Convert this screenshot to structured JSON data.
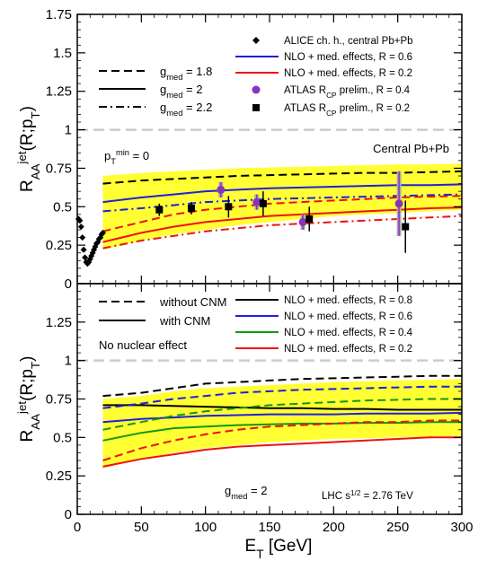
{
  "chart_data": [
    {
      "type": "line",
      "panel": "top",
      "ylabel": "R_AA^jet(R;p_T)",
      "ylim": [
        0,
        1.75
      ],
      "xlim": [
        0,
        300
      ],
      "yticks": [
        "0",
        "0.25",
        "0.5",
        "0.75",
        "1",
        "1.25",
        "1.5",
        "1.75"
      ],
      "xticks": [
        "0",
        "50",
        "100",
        "150",
        "200",
        "250",
        "300"
      ],
      "reference_line": 1.0,
      "band": {
        "color": "#ffff33",
        "x": [
          20,
          50,
          75,
          100,
          125,
          150,
          175,
          200,
          225,
          250,
          275,
          300
        ],
        "upper": [
          0.7,
          0.72,
          0.73,
          0.74,
          0.75,
          0.755,
          0.76,
          0.765,
          0.77,
          0.775,
          0.775,
          0.78
        ],
        "lower": [
          0.22,
          0.28,
          0.32,
          0.35,
          0.38,
          0.4,
          0.42,
          0.44,
          0.45,
          0.46,
          0.47,
          0.48
        ]
      },
      "series": [
        {
          "name": "g_med = 1.8, R = 0.6",
          "color": "#000000",
          "dash": "dashed",
          "x": [
            20,
            50,
            75,
            100,
            125,
            150,
            175,
            200,
            225,
            250,
            275,
            300
          ],
          "y": [
            0.65,
            0.67,
            0.68,
            0.69,
            0.7,
            0.705,
            0.71,
            0.715,
            0.72,
            0.72,
            0.725,
            0.73
          ]
        },
        {
          "name": "g_med = 2, R = 0.6",
          "color": "#1f1fdd",
          "dash": "solid",
          "x": [
            20,
            50,
            75,
            100,
            125,
            150,
            175,
            200,
            225,
            250,
            275,
            300
          ],
          "y": [
            0.53,
            0.56,
            0.58,
            0.6,
            0.61,
            0.62,
            0.625,
            0.63,
            0.635,
            0.64,
            0.64,
            0.645
          ]
        },
        {
          "name": "g_med = 2.2, R = 0.6",
          "color": "#1f1fdd",
          "dash": "dashdot",
          "x": [
            20,
            50,
            75,
            100,
            125,
            150,
            175,
            200,
            225,
            250,
            275,
            300
          ],
          "y": [
            0.47,
            0.49,
            0.51,
            0.53,
            0.54,
            0.55,
            0.555,
            0.56,
            0.565,
            0.57,
            0.575,
            0.58
          ]
        },
        {
          "name": "g_med = 1.8, R = 0.2",
          "color": "#ee1111",
          "dash": "dashed",
          "x": [
            20,
            50,
            75,
            100,
            125,
            150,
            175,
            200,
            225,
            250,
            275,
            300
          ],
          "y": [
            0.34,
            0.4,
            0.45,
            0.48,
            0.5,
            0.52,
            0.53,
            0.54,
            0.55,
            0.56,
            0.565,
            0.57
          ]
        },
        {
          "name": "g_med = 2, R = 0.2",
          "color": "#ee1111",
          "dash": "solid",
          "x": [
            20,
            50,
            75,
            100,
            125,
            150,
            175,
            200,
            225,
            250,
            275,
            300
          ],
          "y": [
            0.27,
            0.33,
            0.37,
            0.4,
            0.42,
            0.44,
            0.45,
            0.46,
            0.47,
            0.48,
            0.49,
            0.495
          ]
        },
        {
          "name": "g_med = 2.2, R = 0.2",
          "color": "#ee1111",
          "dash": "dashdot",
          "x": [
            20,
            50,
            75,
            100,
            125,
            150,
            175,
            200,
            225,
            250,
            275,
            300
          ],
          "y": [
            0.23,
            0.28,
            0.31,
            0.34,
            0.36,
            0.38,
            0.39,
            0.4,
            0.41,
            0.42,
            0.43,
            0.44
          ]
        }
      ],
      "alice": {
        "x": [
          1,
          2,
          3,
          4,
          5,
          6,
          7,
          8,
          9,
          10,
          11,
          12,
          13,
          14,
          15,
          16,
          17,
          18,
          19,
          20
        ],
        "y": [
          0.42,
          0.41,
          0.37,
          0.3,
          0.22,
          0.17,
          0.14,
          0.13,
          0.14,
          0.16,
          0.18,
          0.2,
          0.22,
          0.24,
          0.26,
          0.27,
          0.29,
          0.3,
          0.32,
          0.33
        ]
      },
      "atlas_r04": {
        "color": "#8833bb",
        "x": [
          112,
          140,
          176,
          251
        ],
        "y": [
          0.61,
          0.53,
          0.4,
          0.52
        ],
        "err": [
          0.05,
          0.05,
          0.05,
          0.21
        ]
      },
      "atlas_r02": {
        "x": [
          64,
          89,
          118,
          145,
          181,
          256
        ],
        "y": [
          0.48,
          0.49,
          0.5,
          0.52,
          0.42,
          0.37
        ],
        "err": [
          0.04,
          0.04,
          0.07,
          0.08,
          0.08,
          0.17
        ]
      },
      "legend_left": [
        {
          "text": "g",
          "sub": "med",
          "value": " = 1.8",
          "dash": "dashed"
        },
        {
          "text": "g",
          "sub": "med",
          "value": " = 2",
          "dash": "solid"
        },
        {
          "text": "g",
          "sub": "med",
          "value": " = 2.2",
          "dash": "dashdot"
        }
      ],
      "legend_right": [
        {
          "text": "ALICE ch. h., central Pb+Pb",
          "marker": "diamond"
        },
        {
          "text": "NLO + med. effects, R = 0.6",
          "color": "#1f1fdd"
        },
        {
          "text": "NLO + med. effects, R = 0.2",
          "color": "#ee1111"
        },
        {
          "text": "ATLAS R",
          "sub": "CP",
          "rest": " prelim., R = 0.4",
          "marker": "purple-circle"
        },
        {
          "text": "ATLAS R",
          "sub": "CP",
          "rest": " prelim., R = 0.2",
          "marker": "square"
        }
      ],
      "annotation_pt": {
        "text": "p",
        "sub": "T",
        "sup": "min",
        "rest": " = 0"
      },
      "annotation_label": "Central Pb+Pb"
    },
    {
      "type": "line",
      "panel": "bottom",
      "ylabel": "R_AA^jet(R;p_T)",
      "xlabel": "E_T [GeV]",
      "ylim": [
        0,
        1.5
      ],
      "xlim": [
        0,
        300
      ],
      "yticks": [
        "0",
        "0.25",
        "0.5",
        "0.75",
        "1",
        "1.25"
      ],
      "xticks": [
        "0",
        "50",
        "100",
        "150",
        "200",
        "250",
        "300"
      ],
      "reference_line": 1.0,
      "band": {
        "color": "#ffff33",
        "x": [
          20,
          50,
          75,
          100,
          125,
          150,
          175,
          200,
          225,
          250,
          275,
          300
        ],
        "upper": [
          0.75,
          0.77,
          0.8,
          0.82,
          0.83,
          0.84,
          0.85,
          0.86,
          0.865,
          0.87,
          0.875,
          0.88
        ],
        "lower": [
          0.3,
          0.36,
          0.4,
          0.43,
          0.45,
          0.47,
          0.48,
          0.49,
          0.495,
          0.5,
          0.505,
          0.51
        ]
      },
      "series": [
        {
          "name": "without CNM, R = 0.8",
          "color": "#000000",
          "dash": "dashed",
          "x": [
            20,
            50,
            75,
            100,
            125,
            150,
            175,
            200,
            225,
            250,
            275,
            300
          ],
          "y": [
            0.77,
            0.79,
            0.82,
            0.85,
            0.86,
            0.87,
            0.88,
            0.885,
            0.89,
            0.895,
            0.9,
            0.9
          ]
        },
        {
          "name": "with CNM, R = 0.8",
          "color": "#000000",
          "dash": "solid",
          "x": [
            20,
            50,
            75,
            100,
            125,
            150,
            175,
            200,
            225,
            250,
            275,
            300
          ],
          "y": [
            0.71,
            0.71,
            0.705,
            0.7,
            0.695,
            0.69,
            0.69,
            0.685,
            0.685,
            0.68,
            0.68,
            0.68
          ]
        },
        {
          "name": "without CNM, R = 0.6",
          "color": "#1f1fdd",
          "dash": "dashed",
          "x": [
            20,
            50,
            75,
            100,
            125,
            150,
            175,
            200,
            225,
            250,
            275,
            300
          ],
          "y": [
            0.69,
            0.72,
            0.75,
            0.77,
            0.79,
            0.8,
            0.81,
            0.815,
            0.82,
            0.825,
            0.83,
            0.83
          ]
        },
        {
          "name": "with CNM, R = 0.6",
          "color": "#1f1fdd",
          "dash": "solid",
          "x": [
            20,
            50,
            75,
            100,
            125,
            150,
            175,
            200,
            225,
            250,
            275,
            300
          ],
          "y": [
            0.6,
            0.62,
            0.63,
            0.64,
            0.645,
            0.65,
            0.65,
            0.65,
            0.655,
            0.655,
            0.655,
            0.66
          ]
        },
        {
          "name": "without CNM, R = 0.4",
          "color": "#119911",
          "dash": "dashed",
          "x": [
            20,
            50,
            75,
            100,
            125,
            150,
            175,
            200,
            225,
            250,
            275,
            300
          ],
          "y": [
            0.55,
            0.6,
            0.64,
            0.67,
            0.69,
            0.71,
            0.72,
            0.73,
            0.74,
            0.745,
            0.75,
            0.75
          ]
        },
        {
          "name": "with CNM, R = 0.4",
          "color": "#119911",
          "dash": "solid",
          "x": [
            20,
            50,
            75,
            100,
            125,
            150,
            175,
            200,
            225,
            250,
            275,
            300
          ],
          "y": [
            0.48,
            0.53,
            0.56,
            0.57,
            0.58,
            0.585,
            0.59,
            0.59,
            0.595,
            0.595,
            0.6,
            0.6
          ]
        },
        {
          "name": "without CNM, R = 0.2",
          "color": "#ee1111",
          "dash": "dashed",
          "x": [
            20,
            50,
            75,
            100,
            125,
            150,
            175,
            200,
            225,
            250,
            275,
            300
          ],
          "y": [
            0.35,
            0.43,
            0.48,
            0.52,
            0.55,
            0.57,
            0.58,
            0.59,
            0.6,
            0.6,
            0.61,
            0.61
          ]
        },
        {
          "name": "with CNM, R = 0.2",
          "color": "#ee1111",
          "dash": "solid",
          "x": [
            20,
            50,
            75,
            100,
            125,
            150,
            175,
            200,
            225,
            250,
            275,
            300
          ],
          "y": [
            0.31,
            0.36,
            0.39,
            0.42,
            0.44,
            0.45,
            0.46,
            0.47,
            0.48,
            0.49,
            0.5,
            0.5
          ]
        }
      ],
      "legend_left": [
        {
          "text": "without CNM",
          "dash": "dashed"
        },
        {
          "text": "with CNM",
          "dash": "solid"
        }
      ],
      "legend_right": [
        {
          "text": "NLO + med. effects, R = 0.8",
          "color": "#000000"
        },
        {
          "text": "NLO + med. effects, R = 0.6",
          "color": "#1f1fdd"
        },
        {
          "text": "NLO + med. effects, R = 0.4",
          "color": "#119911"
        },
        {
          "text": "NLO + med. effects, R = 0.2",
          "color": "#ee1111"
        }
      ],
      "annotation_noeffect": "No nuclear effect",
      "annotation_gmed": {
        "text": "g",
        "sub": "med",
        "rest": " = 2"
      },
      "annotation_lhc": {
        "text": "LHC s",
        "sup": "1/2",
        "rest": " = 2.76 TeV"
      }
    }
  ]
}
